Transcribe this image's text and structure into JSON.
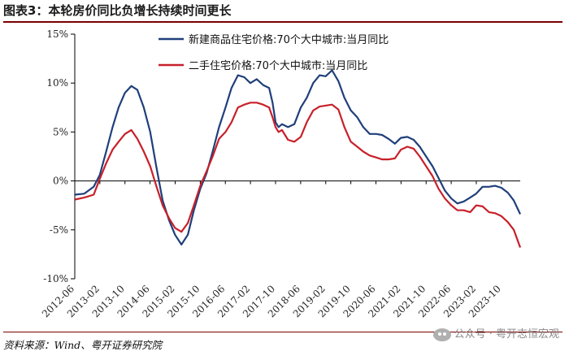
{
  "header": {
    "title": "图表3：本轮房价同比负增长持续时间更长"
  },
  "footer": {
    "source": "资料来源：Wind、粤开证券研究院",
    "watermark": "公众号 · 粤开志恒宏观"
  },
  "colors": {
    "new_homes": "#1f3f7a",
    "second_hand": "#c8202a"
  },
  "chart_data": {
    "type": "line",
    "title": "",
    "xlabel": "",
    "ylabel": "",
    "ylim": [
      -10,
      15
    ],
    "y_ticks": [
      -10,
      -5,
      0,
      5,
      10,
      15
    ],
    "y_tick_labels": [
      "-10%",
      "-5%",
      "0%",
      "5%",
      "10%",
      "15%"
    ],
    "x_tick_labels": [
      "2012-06",
      "2013-02",
      "2013-10",
      "2014-06",
      "2015-02",
      "2015-10",
      "2016-06",
      "2017-02",
      "2017-10",
      "2018-06",
      "2019-02",
      "2019-10",
      "2020-06",
      "2021-02",
      "2021-10",
      "2022-06",
      "2023-02",
      "2023-10"
    ],
    "x_start": "2012-06",
    "x_end": "2024-04",
    "legend_position": "top",
    "series": [
      {
        "name": "新建商品住宅价格:70个大中城市:当月同比",
        "values": [
          [
            2012.42,
            -1.4
          ],
          [
            2012.67,
            -1.3
          ],
          [
            2012.92,
            -0.6
          ],
          [
            2013.08,
            0.6
          ],
          [
            2013.25,
            3.0
          ],
          [
            2013.42,
            5.5
          ],
          [
            2013.58,
            7.5
          ],
          [
            2013.75,
            9.0
          ],
          [
            2013.92,
            9.7
          ],
          [
            2014.08,
            9.3
          ],
          [
            2014.25,
            7.5
          ],
          [
            2014.42,
            5.0
          ],
          [
            2014.58,
            1.5
          ],
          [
            2014.75,
            -2.0
          ],
          [
            2014.92,
            -4.0
          ],
          [
            2015.08,
            -5.5
          ],
          [
            2015.25,
            -6.5
          ],
          [
            2015.42,
            -5.5
          ],
          [
            2015.58,
            -3.0
          ],
          [
            2015.75,
            -0.8
          ],
          [
            2015.92,
            0.8
          ],
          [
            2016.08,
            3.0
          ],
          [
            2016.25,
            5.5
          ],
          [
            2016.42,
            7.5
          ],
          [
            2016.58,
            9.5
          ],
          [
            2016.75,
            10.8
          ],
          [
            2016.92,
            10.6
          ],
          [
            2017.08,
            10.0
          ],
          [
            2017.25,
            10.4
          ],
          [
            2017.42,
            9.8
          ],
          [
            2017.58,
            9.5
          ],
          [
            2017.67,
            8.0
          ],
          [
            2017.75,
            6.0
          ],
          [
            2017.83,
            5.5
          ],
          [
            2017.92,
            5.8
          ],
          [
            2018.08,
            5.5
          ],
          [
            2018.25,
            5.8
          ],
          [
            2018.42,
            7.5
          ],
          [
            2018.58,
            8.5
          ],
          [
            2018.75,
            10.0
          ],
          [
            2018.92,
            10.8
          ],
          [
            2019.08,
            10.7
          ],
          [
            2019.25,
            11.3
          ],
          [
            2019.42,
            10.2
          ],
          [
            2019.58,
            8.5
          ],
          [
            2019.75,
            7.2
          ],
          [
            2019.92,
            6.5
          ],
          [
            2020.08,
            5.5
          ],
          [
            2020.25,
            4.8
          ],
          [
            2020.42,
            4.8
          ],
          [
            2020.58,
            4.7
          ],
          [
            2020.75,
            4.3
          ],
          [
            2020.92,
            3.8
          ],
          [
            2021.08,
            4.4
          ],
          [
            2021.25,
            4.5
          ],
          [
            2021.42,
            4.2
          ],
          [
            2021.58,
            3.5
          ],
          [
            2021.75,
            2.5
          ],
          [
            2021.92,
            1.5
          ],
          [
            2022.08,
            0.3
          ],
          [
            2022.25,
            -1.0
          ],
          [
            2022.42,
            -1.8
          ],
          [
            2022.58,
            -2.3
          ],
          [
            2022.75,
            -2.1
          ],
          [
            2022.92,
            -1.7
          ],
          [
            2023.08,
            -1.3
          ],
          [
            2023.25,
            -0.6
          ],
          [
            2023.42,
            -0.6
          ],
          [
            2023.58,
            -0.5
          ],
          [
            2023.75,
            -0.7
          ],
          [
            2023.92,
            -1.2
          ],
          [
            2024.08,
            -2.0
          ],
          [
            2024.25,
            -3.4
          ]
        ]
      },
      {
        "name": "二手住宅价格:70个大中城市:当月同比",
        "values": [
          [
            2012.42,
            -1.9
          ],
          [
            2012.67,
            -1.7
          ],
          [
            2012.92,
            -1.4
          ],
          [
            2013.08,
            0.2
          ],
          [
            2013.25,
            1.8
          ],
          [
            2013.42,
            3.2
          ],
          [
            2013.58,
            4.0
          ],
          [
            2013.75,
            4.8
          ],
          [
            2013.92,
            5.2
          ],
          [
            2014.08,
            4.3
          ],
          [
            2014.25,
            3.0
          ],
          [
            2014.42,
            1.5
          ],
          [
            2014.58,
            -0.5
          ],
          [
            2014.75,
            -2.5
          ],
          [
            2014.92,
            -3.8
          ],
          [
            2015.08,
            -4.8
          ],
          [
            2015.25,
            -5.2
          ],
          [
            2015.42,
            -4.3
          ],
          [
            2015.58,
            -2.5
          ],
          [
            2015.75,
            -0.5
          ],
          [
            2015.92,
            1.0
          ],
          [
            2016.08,
            2.5
          ],
          [
            2016.25,
            4.3
          ],
          [
            2016.42,
            5.0
          ],
          [
            2016.58,
            6.0
          ],
          [
            2016.75,
            7.5
          ],
          [
            2016.92,
            7.8
          ],
          [
            2017.08,
            8.0
          ],
          [
            2017.25,
            8.0
          ],
          [
            2017.42,
            7.8
          ],
          [
            2017.58,
            7.5
          ],
          [
            2017.67,
            6.5
          ],
          [
            2017.75,
            5.5
          ],
          [
            2017.83,
            5.0
          ],
          [
            2017.92,
            5.2
          ],
          [
            2018.08,
            4.2
          ],
          [
            2018.25,
            4.0
          ],
          [
            2018.42,
            4.5
          ],
          [
            2018.58,
            6.0
          ],
          [
            2018.75,
            7.2
          ],
          [
            2018.92,
            7.6
          ],
          [
            2019.08,
            7.7
          ],
          [
            2019.25,
            7.8
          ],
          [
            2019.42,
            7.3
          ],
          [
            2019.58,
            5.5
          ],
          [
            2019.75,
            4.0
          ],
          [
            2019.92,
            3.5
          ],
          [
            2020.08,
            3.0
          ],
          [
            2020.25,
            2.6
          ],
          [
            2020.42,
            2.4
          ],
          [
            2020.58,
            2.2
          ],
          [
            2020.75,
            2.2
          ],
          [
            2020.92,
            2.3
          ],
          [
            2021.08,
            3.2
          ],
          [
            2021.25,
            3.5
          ],
          [
            2021.42,
            3.3
          ],
          [
            2021.58,
            2.5
          ],
          [
            2021.75,
            1.5
          ],
          [
            2021.92,
            0.5
          ],
          [
            2022.08,
            -0.8
          ],
          [
            2022.25,
            -1.8
          ],
          [
            2022.42,
            -2.5
          ],
          [
            2022.58,
            -3.0
          ],
          [
            2022.75,
            -3.0
          ],
          [
            2022.92,
            -3.2
          ],
          [
            2023.08,
            -2.5
          ],
          [
            2023.25,
            -2.6
          ],
          [
            2023.42,
            -3.2
          ],
          [
            2023.58,
            -3.3
          ],
          [
            2023.75,
            -3.6
          ],
          [
            2023.92,
            -4.2
          ],
          [
            2024.08,
            -5.0
          ],
          [
            2024.25,
            -6.8
          ]
        ]
      }
    ]
  }
}
